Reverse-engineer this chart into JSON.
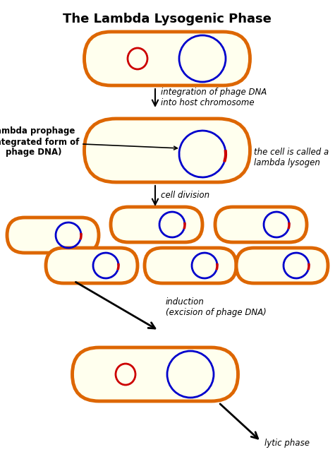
{
  "title": "The Lambda Lysogenic Phase",
  "bg_color": "#ffffff",
  "cell_fill": "#ffffee",
  "cell_edge": "#dd6600",
  "cell_edge_width": 3.5,
  "phage_dna_color": "#cc0000",
  "chromosome_color": "#0000cc",
  "label_fontsize": 8.5,
  "title_fontsize": 13,
  "annotations": {
    "arrow1": "integration of phage DNA\ninto host chromosome",
    "arrow2": "cell division",
    "arrow3": "induction\n(excision of phage DNA)",
    "label_prophage": "lambda prophage\n(integrated form of\nphage DNA)",
    "label_lysogen": "the cell is called a\nlambda lysogen",
    "label_lytic": "lytic phase"
  }
}
